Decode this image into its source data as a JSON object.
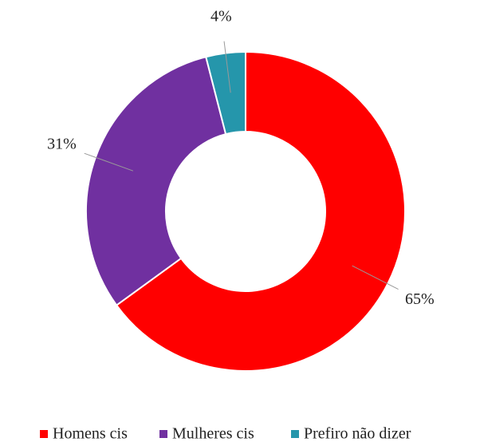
{
  "chart_data": {
    "type": "donut",
    "categories": [
      "Homens cis",
      "Mulheres cis",
      "Prefiro não dizer"
    ],
    "values": [
      65,
      31,
      4
    ],
    "value_labels": [
      "65%",
      "31%",
      "4%"
    ],
    "colors": [
      "#ff0000",
      "#7030a0",
      "#2596ab"
    ],
    "legend": "bottom"
  }
}
